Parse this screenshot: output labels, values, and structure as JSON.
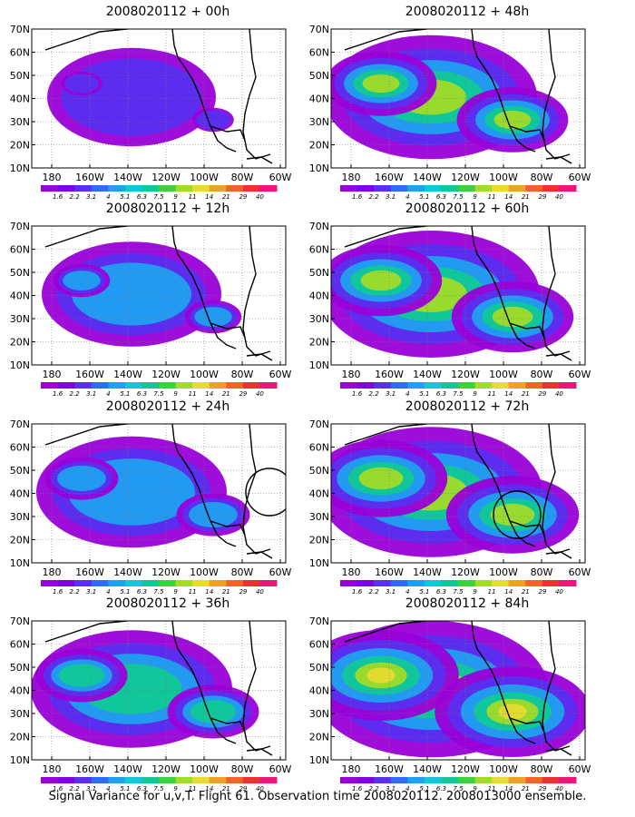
{
  "panels": [
    {
      "title": "2008020112 + 00h",
      "circle": false,
      "intensity": 0.35
    },
    {
      "title": "2008020112 + 48h",
      "circle": false,
      "intensity": 0.75
    },
    {
      "title": "2008020112 + 12h",
      "circle": false,
      "intensity": 0.45
    },
    {
      "title": "2008020112 + 60h",
      "circle": false,
      "intensity": 0.8
    },
    {
      "title": "2008020112 + 24h",
      "circle": true,
      "intensity": 0.55
    },
    {
      "title": "2008020112 + 72h",
      "circle": true,
      "intensity": 0.85
    },
    {
      "title": "2008020112 + 36h",
      "circle": false,
      "intensity": 0.65
    },
    {
      "title": "2008020112 + 84h",
      "circle": false,
      "intensity": 0.95
    }
  ],
  "lat_labels": [
    "70N",
    "60N",
    "50N",
    "40N",
    "30N",
    "20N",
    "10N"
  ],
  "lon_labels": [
    "180",
    "160W",
    "140W",
    "120W",
    "100W",
    "80W",
    "60W"
  ],
  "colorbar": {
    "labels": [
      "1.6",
      "2.2",
      "3.1",
      "4",
      "5.1",
      "6.3",
      "7.5",
      "9",
      "11",
      "14",
      "21",
      "29",
      "40"
    ],
    "colors": [
      "#9a00d8",
      "#7f00e8",
      "#5a2ff0",
      "#2f6cf5",
      "#1fa0f0",
      "#10c8d8",
      "#10c896",
      "#3cd23c",
      "#a0dc28",
      "#e6dc32",
      "#f0a028",
      "#f06428",
      "#f03030",
      "#f0147a"
    ]
  },
  "footer": "Signal Variance for u,v,T. Flight 61. Observation time 2008020112. 2008013000 ensemble."
}
